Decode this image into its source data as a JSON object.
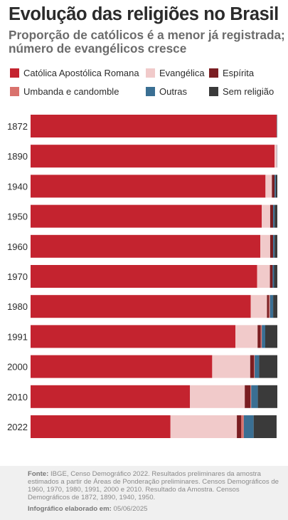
{
  "header": {
    "title": "Evolução das religiões no Brasil",
    "subtitle": "Proporção de católicos é a menor já registrada; número de evangélicos cresce"
  },
  "footer": {
    "source_label": "Fonte:",
    "source_text": "IBGE, Censo Demográfico 2022. Resultados preliminares da amostra estimados a partir de Áreas de Ponderação preliminares. Censos Demográficos de 1960, 1970, 1980, 1991, 2000 e 2010. Resultado da Amostra. Censos Demográficos de 1872, 1890, 1940, 1950.",
    "credit_label": "Infográfico elaborado em:",
    "credit_date": "05/06/2025"
  },
  "chart_data": {
    "type": "bar",
    "orientation": "horizontal",
    "stacked": true,
    "unit": "%",
    "xlim": [
      0,
      100
    ],
    "grid": false,
    "legend_position": "top",
    "categories": [
      "1872",
      "1890",
      "1940",
      "1950",
      "1960",
      "1970",
      "1980",
      "1991",
      "2000",
      "2010",
      "2022"
    ],
    "series": [
      {
        "name": "Católica Apostólica Romana",
        "color": "#c4232f",
        "values": [
          99.7,
          98.9,
          95.2,
          93.7,
          93.1,
          91.8,
          89.2,
          83.0,
          73.6,
          64.6,
          56.7
        ]
      },
      {
        "name": "Evangélica",
        "color": "#f1caca",
        "values": [
          0.1,
          1.0,
          2.6,
          3.4,
          4.0,
          5.2,
          6.6,
          9.0,
          15.4,
          22.2,
          26.9
        ]
      },
      {
        "name": "Espírita",
        "color": "#7a1e22",
        "values": [
          0.0,
          0.0,
          1.1,
          1.2,
          1.2,
          1.1,
          0.8,
          1.3,
          1.5,
          2.3,
          1.8
        ]
      },
      {
        "name": "Umbanda e candomble",
        "color": "#d9726d",
        "values": [
          0.0,
          0.0,
          0.0,
          0.0,
          0.0,
          0.0,
          0.4,
          0.4,
          0.3,
          0.3,
          1.0
        ]
      },
      {
        "name": "Outras",
        "color": "#3a6f93",
        "values": [
          0.1,
          0.1,
          0.5,
          0.6,
          0.6,
          0.6,
          1.3,
          1.4,
          1.8,
          2.7,
          4.0
        ]
      },
      {
        "name": "Sem religião",
        "color": "#3a3a3a",
        "values": [
          0.1,
          0.0,
          0.6,
          1.1,
          1.1,
          1.3,
          1.7,
          4.9,
          7.4,
          7.9,
          9.3
        ]
      }
    ]
  }
}
